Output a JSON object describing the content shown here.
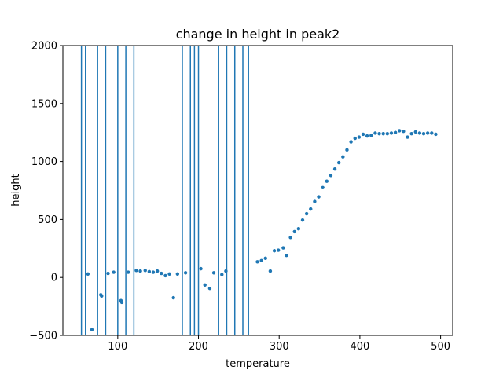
{
  "chart_data": {
    "type": "scatter",
    "title": "change in height in peak2",
    "xlabel": "temperature",
    "ylabel": "height",
    "xlim": [
      32,
      515
    ],
    "ylim": [
      -500,
      2000
    ],
    "xticks": [
      100,
      200,
      300,
      400,
      500
    ],
    "yticks": [
      -500,
      0,
      500,
      1000,
      1500,
      2000
    ],
    "grid": false,
    "color": "#1f77b4",
    "vlines": [
      55,
      60,
      75,
      85,
      100,
      110,
      120,
      180,
      190,
      195,
      200,
      225,
      235,
      245,
      255,
      262
    ],
    "points": [
      [
        63,
        30
      ],
      [
        68,
        -450
      ],
      [
        79,
        -150
      ],
      [
        80,
        -160
      ],
      [
        88,
        35
      ],
      [
        95,
        45
      ],
      [
        104,
        -200
      ],
      [
        105,
        -215
      ],
      [
        113,
        45
      ],
      [
        123,
        60
      ],
      [
        128,
        55
      ],
      [
        134,
        60
      ],
      [
        139,
        50
      ],
      [
        144,
        45
      ],
      [
        149,
        55
      ],
      [
        154,
        35
      ],
      [
        159,
        15
      ],
      [
        164,
        30
      ],
      [
        169,
        -175
      ],
      [
        174,
        30
      ],
      [
        184,
        40
      ],
      [
        203,
        75
      ],
      [
        208,
        -65
      ],
      [
        214,
        -95
      ],
      [
        219,
        40
      ],
      [
        229,
        25
      ],
      [
        234,
        55
      ],
      [
        273,
        135
      ],
      [
        278,
        145
      ],
      [
        283,
        165
      ],
      [
        289,
        55
      ],
      [
        294,
        230
      ],
      [
        299,
        235
      ],
      [
        305,
        255
      ],
      [
        309,
        190
      ],
      [
        314,
        345
      ],
      [
        319,
        395
      ],
      [
        324,
        420
      ],
      [
        329,
        495
      ],
      [
        334,
        550
      ],
      [
        339,
        590
      ],
      [
        344,
        655
      ],
      [
        349,
        695
      ],
      [
        354,
        775
      ],
      [
        359,
        830
      ],
      [
        364,
        880
      ],
      [
        369,
        935
      ],
      [
        374,
        990
      ],
      [
        379,
        1040
      ],
      [
        384,
        1100
      ],
      [
        389,
        1170
      ],
      [
        394,
        1200
      ],
      [
        399,
        1210
      ],
      [
        404,
        1235
      ],
      [
        409,
        1220
      ],
      [
        414,
        1225
      ],
      [
        419,
        1245
      ],
      [
        424,
        1240
      ],
      [
        429,
        1240
      ],
      [
        434,
        1240
      ],
      [
        439,
        1245
      ],
      [
        444,
        1250
      ],
      [
        449,
        1265
      ],
      [
        454,
        1260
      ],
      [
        459,
        1210
      ],
      [
        464,
        1240
      ],
      [
        469,
        1255
      ],
      [
        474,
        1245
      ],
      [
        479,
        1240
      ],
      [
        484,
        1245
      ],
      [
        489,
        1245
      ],
      [
        494,
        1235
      ]
    ]
  }
}
